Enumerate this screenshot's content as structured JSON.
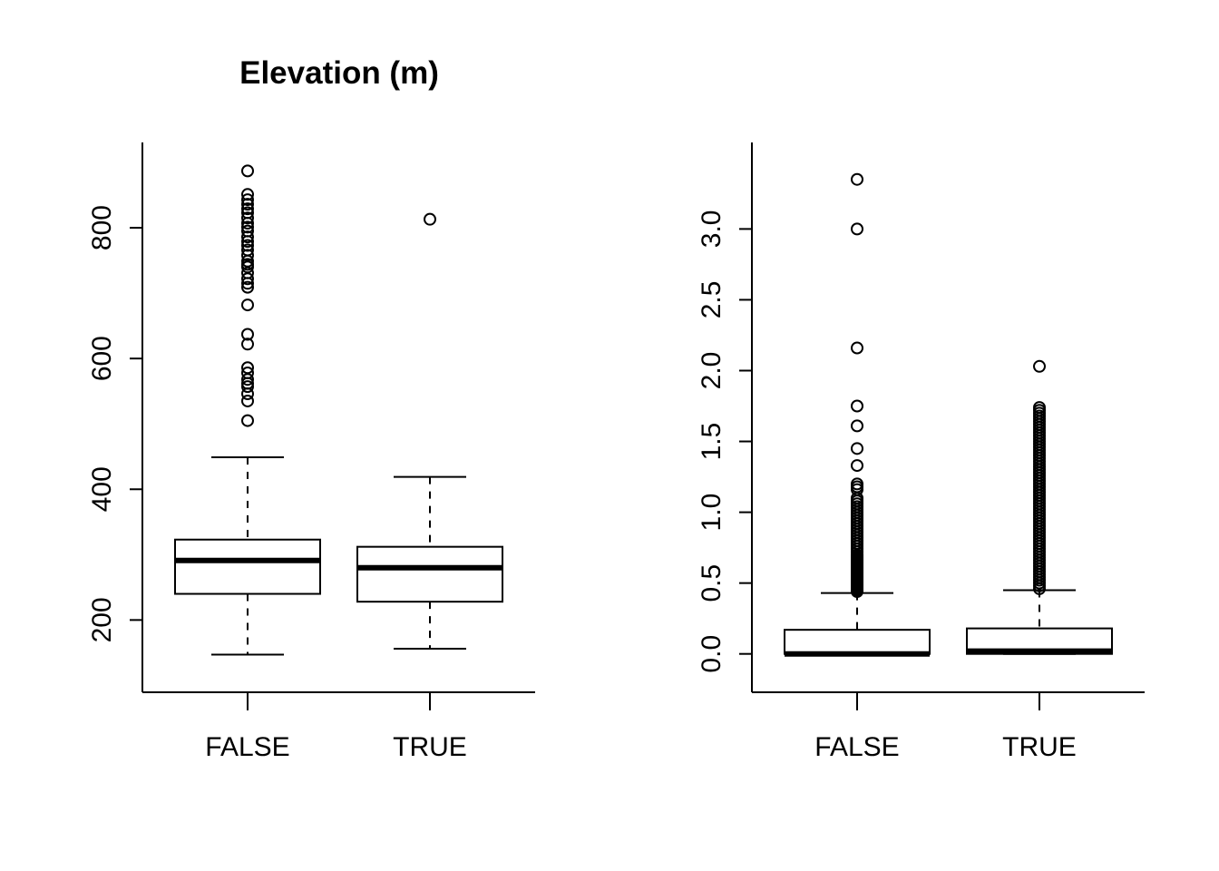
{
  "colors": {
    "background": "#ffffff",
    "ink": "#000000"
  },
  "chart_data": [
    {
      "type": "boxplot",
      "title": "Elevation (m)",
      "xlabel": "",
      "ylabel": "",
      "categories": [
        "FALSE",
        "TRUE"
      ],
      "ylim": [
        120,
        900
      ],
      "yticks": [
        200,
        400,
        600,
        800
      ],
      "ytick_labels": [
        "200",
        "400",
        "600",
        "800"
      ],
      "boxes": [
        {
          "name": "FALSE",
          "whisker_low": 147,
          "q1": 240,
          "median": 291,
          "q3": 323,
          "whisker_high": 449,
          "outliers": [
            505,
            535,
            546,
            557,
            562,
            568,
            578,
            586,
            622,
            637,
            682,
            709,
            715,
            722,
            731,
            740,
            744,
            749,
            758,
            766,
            773,
            779,
            786,
            795,
            801,
            807,
            815,
            823,
            829,
            836,
            843,
            851,
            887
          ]
        },
        {
          "name": "TRUE",
          "whisker_low": 156,
          "q1": 228,
          "median": 280,
          "q3": 312,
          "whisker_high": 419,
          "outliers": [
            813
          ]
        }
      ]
    },
    {
      "type": "boxplot",
      "title": "",
      "xlabel": "",
      "ylabel": "",
      "categories": [
        "FALSE",
        "TRUE"
      ],
      "ylim": [
        -0.13,
        3.47
      ],
      "yticks": [
        0.0,
        0.5,
        1.0,
        1.5,
        2.0,
        2.5,
        3.0
      ],
      "ytick_labels": [
        "0.0",
        "0.5",
        "1.0",
        "1.5",
        "2.0",
        "2.5",
        "3.0"
      ],
      "boxes": [
        {
          "name": "FALSE",
          "whisker_low": 0.0,
          "q1": 0.0,
          "median": 0.0,
          "q3": 0.17,
          "whisker_high": 0.43,
          "outliers": [
            0.44,
            0.45,
            0.46,
            0.47,
            0.48,
            0.49,
            0.5,
            0.51,
            0.52,
            0.53,
            0.54,
            0.55,
            0.56,
            0.57,
            0.58,
            0.59,
            0.6,
            0.61,
            0.62,
            0.63,
            0.64,
            0.65,
            0.66,
            0.67,
            0.68,
            0.69,
            0.7,
            0.72,
            0.74,
            0.76,
            0.78,
            0.8,
            0.82,
            0.84,
            0.86,
            0.88,
            0.9,
            0.92,
            0.94,
            0.96,
            0.98,
            1.0,
            1.02,
            1.04,
            1.06,
            1.08,
            1.1,
            1.16,
            1.18,
            1.2,
            1.33,
            1.45,
            1.61,
            1.75,
            2.16,
            3.0,
            3.35
          ]
        },
        {
          "name": "TRUE",
          "whisker_low": 0.0,
          "q1": 0.0,
          "median": 0.02,
          "q3": 0.18,
          "whisker_high": 0.45,
          "outliers": [
            0.46,
            0.48,
            0.5,
            0.52,
            0.54,
            0.56,
            0.58,
            0.6,
            0.62,
            0.64,
            0.66,
            0.68,
            0.7,
            0.72,
            0.74,
            0.76,
            0.78,
            0.8,
            0.82,
            0.84,
            0.86,
            0.88,
            0.9,
            0.92,
            0.94,
            0.96,
            0.98,
            1.0,
            1.02,
            1.04,
            1.06,
            1.08,
            1.1,
            1.12,
            1.14,
            1.16,
            1.18,
            1.2,
            1.22,
            1.24,
            1.26,
            1.28,
            1.3,
            1.32,
            1.34,
            1.36,
            1.38,
            1.4,
            1.42,
            1.44,
            1.46,
            1.48,
            1.5,
            1.52,
            1.54,
            1.56,
            1.58,
            1.6,
            1.62,
            1.64,
            1.66,
            1.68,
            1.7,
            1.72,
            1.74,
            2.03
          ]
        }
      ]
    }
  ]
}
